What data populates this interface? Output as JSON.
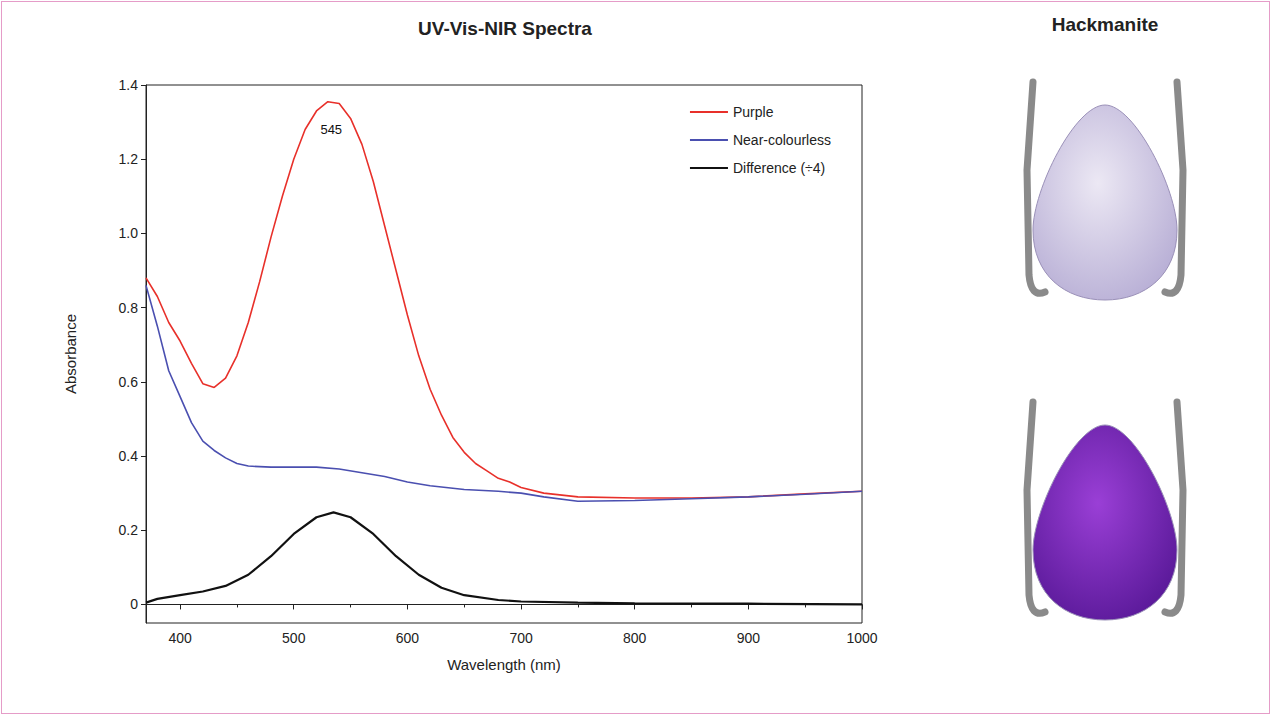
{
  "chart_data": {
    "type": "line",
    "title": "UV-Vis-NIR Spectra",
    "x_label": "Wavelength (nm)",
    "y_label": "Absorbance",
    "xlim": [
      370,
      1000
    ],
    "xticks": [
      400,
      500,
      600,
      700,
      800,
      900,
      1000
    ],
    "ylim": [
      -0.05,
      1.4
    ],
    "yticks": [
      0,
      0.2,
      0.4,
      0.6,
      0.8,
      {
        "value": 1,
        "label": "1.0"
      },
      1.2,
      1.4
    ],
    "grid": false,
    "legend": "upper right",
    "annotations": [
      {
        "text": "545",
        "x": 533,
        "y": 1.28
      }
    ],
    "series": [
      {
        "name": "Purple",
        "color": "#e8302a",
        "x": [
          370,
          380,
          390,
          400,
          410,
          420,
          430,
          440,
          450,
          460,
          470,
          480,
          490,
          500,
          510,
          520,
          530,
          540,
          550,
          560,
          570,
          580,
          590,
          600,
          610,
          620,
          630,
          640,
          650,
          660,
          670,
          680,
          690,
          700,
          720,
          750,
          800,
          850,
          900,
          950,
          1000
        ],
        "values": [
          0.88,
          0.83,
          0.76,
          0.71,
          0.65,
          0.595,
          0.585,
          0.61,
          0.67,
          0.76,
          0.87,
          0.99,
          1.1,
          1.2,
          1.28,
          1.33,
          1.355,
          1.35,
          1.31,
          1.24,
          1.14,
          1.02,
          0.9,
          0.78,
          0.67,
          0.58,
          0.51,
          0.45,
          0.41,
          0.38,
          0.36,
          0.34,
          0.33,
          0.315,
          0.3,
          0.29,
          0.287,
          0.287,
          0.29,
          0.298,
          0.305
        ]
      },
      {
        "name": "Near-colourless",
        "color": "#4a4fb0",
        "x": [
          370,
          380,
          390,
          400,
          410,
          420,
          430,
          440,
          450,
          460,
          480,
          500,
          520,
          540,
          560,
          580,
          600,
          620,
          650,
          680,
          700,
          720,
          750,
          800,
          850,
          900,
          950,
          1000
        ],
        "values": [
          0.86,
          0.75,
          0.63,
          0.56,
          0.49,
          0.44,
          0.415,
          0.395,
          0.38,
          0.373,
          0.37,
          0.37,
          0.37,
          0.365,
          0.355,
          0.345,
          0.33,
          0.32,
          0.31,
          0.305,
          0.3,
          0.29,
          0.278,
          0.28,
          0.285,
          0.29,
          0.297,
          0.305
        ]
      },
      {
        "name": "Difference (÷4)",
        "color": "#111111",
        "x": [
          370,
          380,
          400,
          420,
          440,
          460,
          480,
          500,
          520,
          535,
          550,
          570,
          590,
          610,
          630,
          650,
          680,
          700,
          750,
          800,
          900,
          1000
        ],
        "values": [
          0.005,
          0.015,
          0.025,
          0.035,
          0.05,
          0.08,
          0.13,
          0.19,
          0.235,
          0.248,
          0.235,
          0.19,
          0.13,
          0.08,
          0.045,
          0.025,
          0.012,
          0.008,
          0.005,
          0.003,
          0.002,
          0.0
        ]
      }
    ]
  },
  "photo_panel": {
    "title": "Hackmanite"
  }
}
